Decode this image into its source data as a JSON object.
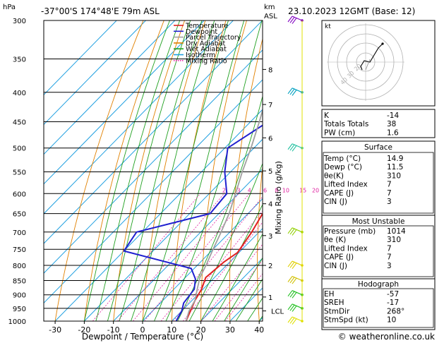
{
  "header": {
    "hpa_label": "hPa",
    "location": "-37°00'S  174°48'E  79m  ASL",
    "km_label": "km",
    "asl_label": "ASL",
    "datetime": "23.10.2023  12GMT  (Base: 12)"
  },
  "legend": [
    {
      "label": "Temperature",
      "color": "#e02020",
      "style": "solid"
    },
    {
      "label": "Dewpoint",
      "color": "#2020d0",
      "style": "solid"
    },
    {
      "label": "Parcel Trajectory",
      "color": "#a0a0a0",
      "style": "solid"
    },
    {
      "label": "Dry Adiabat",
      "color": "#e08000",
      "style": "solid"
    },
    {
      "label": "Wet Adiabat",
      "color": "#20a020",
      "style": "solid"
    },
    {
      "label": "Isotherm",
      "color": "#20a0e0",
      "style": "solid"
    },
    {
      "label": "Mixing Ratio",
      "color": "#e020a0",
      "style": "dotted"
    }
  ],
  "chart_data": {
    "type": "line",
    "title": "Skew-T log-P diagram",
    "xlabel": "Dewpoint / Temperature (°C)",
    "ylabel": "hPa",
    "right_axis_label": "Mixing Ratio (g/kg)",
    "x_ticks": [
      -30,
      -20,
      -10,
      0,
      10,
      20,
      30,
      40
    ],
    "pressure_ticks": [
      300,
      350,
      400,
      450,
      500,
      550,
      600,
      650,
      700,
      750,
      800,
      850,
      900,
      950,
      1000
    ],
    "km_ticks": [
      {
        "label": "8",
        "p": 365
      },
      {
        "label": "7",
        "p": 420
      },
      {
        "label": "6",
        "p": 480
      },
      {
        "label": "5",
        "p": 548
      },
      {
        "label": "4",
        "p": 625
      },
      {
        "label": "3",
        "p": 710
      },
      {
        "label": "2",
        "p": 800
      },
      {
        "label": "1",
        "p": 908
      },
      {
        "label": "LCL",
        "p": 960
      }
    ],
    "mixing_ratio_labels": [
      "2",
      "3",
      "4",
      "6",
      "8",
      "10",
      "15",
      "20",
      "25"
    ],
    "series": [
      {
        "name": "Temperature",
        "points": [
          [
            14.9,
            1000
          ],
          [
            13,
            960
          ],
          [
            11,
            920
          ],
          [
            9.5,
            880
          ],
          [
            7,
            840
          ],
          [
            8,
            790
          ],
          [
            9.5,
            760
          ],
          [
            7.5,
            700
          ],
          [
            5,
            650
          ],
          [
            2,
            600
          ],
          [
            -3,
            550
          ],
          [
            -8,
            500
          ],
          [
            -13,
            450
          ],
          [
            -19.5,
            400
          ],
          [
            -27,
            350
          ],
          [
            -34,
            300
          ]
        ]
      },
      {
        "name": "Dewpoint",
        "points": [
          [
            11.5,
            1000
          ],
          [
            10,
            960
          ],
          [
            8,
            930
          ],
          [
            7,
            880
          ],
          [
            4,
            845
          ],
          [
            -1,
            810
          ],
          [
            -30,
            755
          ],
          [
            -32,
            700
          ],
          [
            -13,
            650
          ],
          [
            -14,
            600
          ],
          [
            -22,
            550
          ],
          [
            -29,
            500
          ],
          [
            -24,
            450
          ],
          [
            -32,
            400
          ],
          [
            -37,
            350
          ],
          [
            -36,
            300
          ]
        ]
      },
      {
        "name": "Parcel Trajectory",
        "points": [
          [
            14.9,
            1000
          ],
          [
            12.5,
            960
          ],
          [
            11,
            920
          ],
          [
            8,
            880
          ],
          [
            5,
            840
          ],
          [
            3,
            800
          ],
          [
            0,
            750
          ],
          [
            -3,
            700
          ],
          [
            -6.5,
            650
          ],
          [
            -11,
            600
          ],
          [
            -16,
            550
          ],
          [
            -21,
            500
          ],
          [
            -27,
            450
          ],
          [
            -34,
            400
          ],
          [
            -41,
            350
          ],
          [
            -49,
            300
          ]
        ]
      }
    ]
  },
  "hodograph": {
    "label": "kt",
    "ring_labels": [
      "40",
      "30",
      "20"
    ]
  },
  "indices_table": [
    {
      "label": "K",
      "value": "-14"
    },
    {
      "label": "Totals Totals",
      "value": "38"
    },
    {
      "label": "PW (cm)",
      "value": "1.6"
    }
  ],
  "surface": {
    "title": "Surface",
    "rows": [
      {
        "label": "Temp (°C)",
        "value": "14.9"
      },
      {
        "label": "Dewp (°C)",
        "value": "11.5"
      },
      {
        "label": "θe(K)",
        "value": "310"
      },
      {
        "label": "Lifted Index",
        "value": "7"
      },
      {
        "label": "CAPE (J)",
        "value": "7"
      },
      {
        "label": "CIN (J)",
        "value": "3"
      }
    ]
  },
  "most_unstable": {
    "title": "Most Unstable",
    "rows": [
      {
        "label": "Pressure (mb)",
        "value": "1014"
      },
      {
        "label": "θe (K)",
        "value": "310"
      },
      {
        "label": "Lifted Index",
        "value": "7"
      },
      {
        "label": "CAPE (J)",
        "value": "7"
      },
      {
        "label": "CIN (J)",
        "value": "3"
      }
    ]
  },
  "hodograph_table": {
    "title": "Hodograph",
    "rows": [
      {
        "label": "EH",
        "value": "-57"
      },
      {
        "label": "SREH",
        "value": "-17"
      },
      {
        "label": "StmDir",
        "value": "268°"
      },
      {
        "label": "StmSpd (kt)",
        "value": "10"
      }
    ]
  },
  "footer": "© weatheronline.co.uk"
}
